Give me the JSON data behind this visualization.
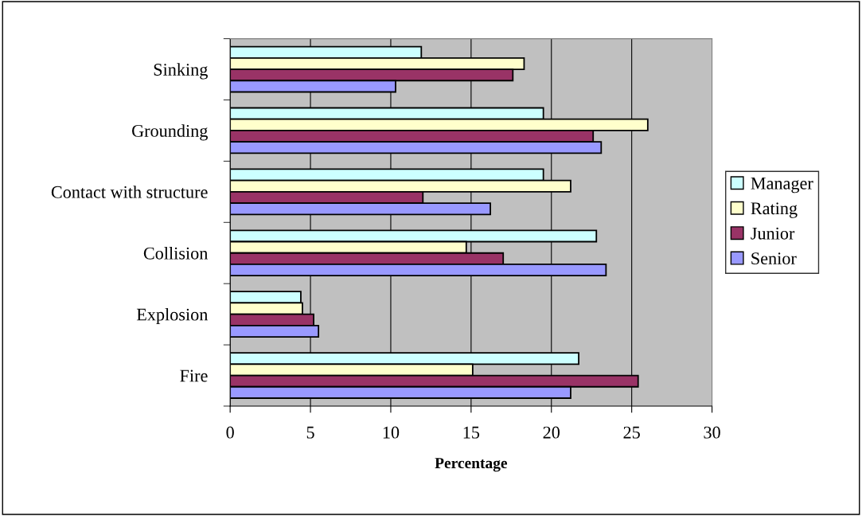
{
  "chart_data": {
    "type": "bar",
    "orientation": "horizontal",
    "xlabel": "Percentage",
    "categories": [
      "Sinking",
      "Grounding",
      "Contact with structure",
      "Collision",
      "Explosion",
      "Fire"
    ],
    "series": [
      {
        "name": "Manager",
        "color": "#ccffff",
        "values": [
          11.9,
          19.5,
          19.5,
          22.8,
          4.4,
          21.7
        ]
      },
      {
        "name": "Rating",
        "color": "#ffffcc",
        "values": [
          18.3,
          26.0,
          21.2,
          14.7,
          4.5,
          15.1
        ]
      },
      {
        "name": "Junior",
        "color": "#993366",
        "values": [
          17.6,
          22.6,
          12.0,
          17.0,
          5.2,
          25.4
        ]
      },
      {
        "name": "Senior",
        "color": "#9999ff",
        "values": [
          10.3,
          23.1,
          16.2,
          23.4,
          5.5,
          21.2
        ]
      }
    ],
    "xlim": [
      0,
      30
    ],
    "xticks": [
      0,
      5,
      10,
      15,
      20,
      25,
      30
    ],
    "grid": "x",
    "legend": "right"
  }
}
